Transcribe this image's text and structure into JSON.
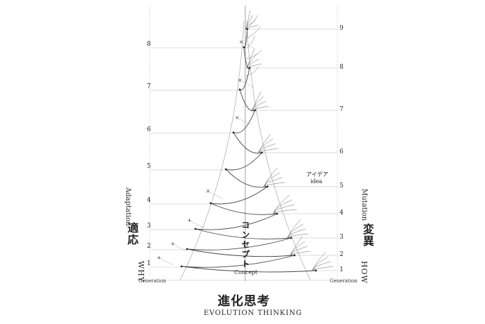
{
  "title": {
    "jp": "進化思考",
    "en": "EVOLUTION THINKING"
  },
  "left_axis": {
    "jp": "適応",
    "en_word": "WHY",
    "en_rotated": "Adaptation",
    "generation_label": "Generation",
    "ticks": [
      "1",
      "2",
      "3",
      "4",
      "5",
      "6",
      "7",
      "8"
    ]
  },
  "right_axis": {
    "jp": "変異",
    "en_word": "HOW",
    "en_rotated": "Mutation",
    "generation_label": "Generation",
    "ticks": [
      "1",
      "2",
      "3",
      "4",
      "5",
      "6",
      "7",
      "8",
      "9"
    ]
  },
  "center": {
    "jp": "コンセプト",
    "en": "Concept"
  },
  "idea": {
    "jp": "アイデア",
    "en": "idea"
  }
}
